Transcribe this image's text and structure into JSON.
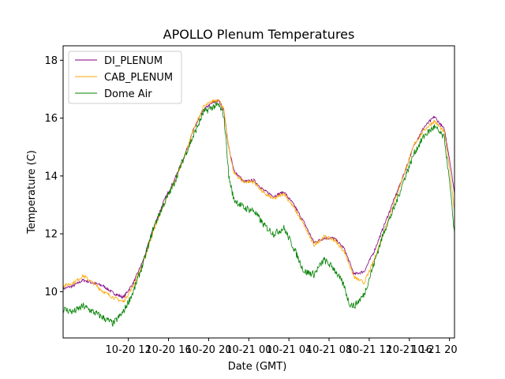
{
  "chart_data": {
    "type": "line",
    "title": "APOLLO Plenum Temperatures",
    "xlabel": "Date (GMT)",
    "ylabel": "Temperature (C)",
    "xlim_hours": [
      -2.5,
      36.5
    ],
    "ylim": [
      8.4,
      18.5
    ],
    "yticks": [
      10,
      12,
      14,
      16,
      18
    ],
    "ytick_labels": [
      "10",
      "12",
      "14",
      "16",
      "18"
    ],
    "xticks_hours": [
      4,
      8,
      12,
      16,
      20,
      24,
      28,
      32
    ],
    "xtick_labels": [
      "10-20 12",
      "10-20 16",
      "10-20 20",
      "10-21 00",
      "10-21 04",
      "10-21 08",
      "10-21 12",
      "10-21 16"
    ],
    "extra_tick": {
      "hours": 36,
      "label": "10-21 20"
    },
    "legend_position": "upper-left",
    "series": [
      {
        "name": "DI_PLENUM",
        "color": "#800080",
        "x": [
          -2.5,
          -1.5,
          -0.5,
          0.5,
          1.5,
          2.5,
          3.5,
          4.5,
          5.5,
          6.5,
          7.5,
          8.5,
          9.5,
          10.5,
          11.5,
          12.5,
          13.0,
          13.5,
          13.8,
          14.0,
          14.5,
          15.5,
          16.5,
          17.5,
          18.5,
          19.5,
          20.5,
          21.5,
          22.5,
          23.5,
          24.5,
          25.5,
          26.5,
          27.5,
          28.5,
          29.5,
          30.5,
          31.5,
          32.5,
          33.5,
          34.5,
          35.5,
          36.0,
          36.5
        ],
        "values": [
          10.1,
          10.2,
          10.4,
          10.3,
          10.2,
          9.95,
          9.8,
          10.3,
          11.1,
          12.2,
          13.1,
          13.8,
          14.6,
          15.6,
          16.3,
          16.55,
          16.6,
          16.3,
          15.5,
          15.0,
          14.2,
          13.8,
          13.85,
          13.5,
          13.3,
          13.45,
          13.0,
          12.4,
          11.7,
          11.85,
          11.85,
          11.5,
          10.6,
          10.7,
          11.4,
          12.3,
          13.2,
          14.1,
          15.1,
          15.7,
          16.05,
          15.6,
          14.6,
          13.4
        ]
      },
      {
        "name": "CAB_PLENUM",
        "color": "#FFA500",
        "x": [
          -2.5,
          -1.5,
          -0.5,
          0.5,
          1.5,
          2.5,
          3.5,
          4.5,
          5.5,
          6.5,
          7.5,
          8.5,
          9.5,
          10.5,
          11.5,
          12.5,
          13.0,
          13.5,
          13.8,
          14.0,
          14.5,
          15.5,
          16.5,
          17.5,
          18.5,
          19.5,
          20.5,
          21.5,
          22.5,
          23.5,
          24.5,
          25.5,
          26.5,
          27.5,
          28.5,
          29.5,
          30.5,
          31.5,
          32.5,
          33.5,
          34.5,
          35.5,
          36.0,
          36.5
        ],
        "values": [
          10.2,
          10.3,
          10.55,
          10.3,
          10.0,
          9.8,
          9.65,
          10.2,
          11.0,
          12.1,
          13.0,
          13.7,
          14.6,
          15.6,
          16.4,
          16.6,
          16.65,
          16.3,
          15.5,
          15.0,
          14.1,
          13.8,
          13.8,
          13.4,
          13.2,
          13.4,
          12.9,
          12.3,
          11.6,
          11.9,
          11.8,
          11.4,
          10.5,
          10.3,
          11.1,
          12.1,
          13.1,
          14.1,
          15.1,
          15.6,
          15.9,
          15.5,
          14.3,
          12.8
        ]
      },
      {
        "name": "Dome Air",
        "color": "#008000",
        "x": [
          -2.5,
          -1.5,
          -0.5,
          0.5,
          1.5,
          2.5,
          3.5,
          4.5,
          5.5,
          6.5,
          7.5,
          8.5,
          9.5,
          10.5,
          11.5,
          12.5,
          13.0,
          13.5,
          13.8,
          14.0,
          14.5,
          15.5,
          16.5,
          17.5,
          18.5,
          19.5,
          20.5,
          21.5,
          22.5,
          23.5,
          24.5,
          25.5,
          26.0,
          26.5,
          27.5,
          28.5,
          29.5,
          30.5,
          31.5,
          32.5,
          33.5,
          34.5,
          35.5,
          36.0,
          36.5
        ],
        "values": [
          9.4,
          9.3,
          9.5,
          9.3,
          9.1,
          8.9,
          9.3,
          10.0,
          11.0,
          12.2,
          13.0,
          13.7,
          14.6,
          15.4,
          16.2,
          16.4,
          16.45,
          16.1,
          15.0,
          14.0,
          13.2,
          12.9,
          12.8,
          12.3,
          12.0,
          12.2,
          11.5,
          10.7,
          10.6,
          11.1,
          10.8,
          10.2,
          9.6,
          9.5,
          9.9,
          11.0,
          12.1,
          12.9,
          13.9,
          14.8,
          15.4,
          15.7,
          15.3,
          13.8,
          12.0
        ]
      }
    ]
  }
}
